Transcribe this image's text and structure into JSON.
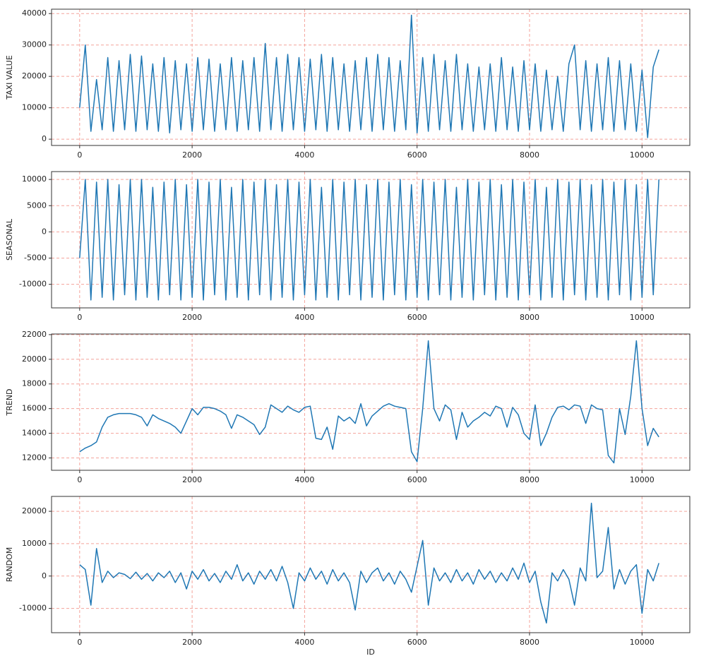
{
  "chart_data": [
    {
      "type": "line",
      "ylabel": "TAXI VALUE",
      "color": "#1f77b4",
      "grid": true,
      "xlim": [
        -500,
        10850
      ],
      "ylim": [
        -2000,
        41400
      ],
      "xticks": [
        0,
        2000,
        4000,
        6000,
        8000,
        10000
      ],
      "yticks": [
        0,
        10000,
        20000,
        30000,
        40000
      ],
      "x": [
        0,
        100,
        200,
        300,
        400,
        500,
        600,
        700,
        800,
        900,
        1000,
        1100,
        1200,
        1300,
        1400,
        1500,
        1600,
        1700,
        1800,
        1900,
        2000,
        2100,
        2200,
        2300,
        2400,
        2500,
        2600,
        2700,
        2800,
        2900,
        3000,
        3100,
        3200,
        3300,
        3400,
        3500,
        3600,
        3700,
        3800,
        3900,
        4000,
        4100,
        4200,
        4300,
        4400,
        4500,
        4600,
        4700,
        4800,
        4900,
        5000,
        5100,
        5200,
        5300,
        5400,
        5500,
        5600,
        5700,
        5800,
        5900,
        6000,
        6100,
        6200,
        6300,
        6400,
        6500,
        6600,
        6700,
        6800,
        6900,
        7000,
        7100,
        7200,
        7300,
        7400,
        7500,
        7600,
        7700,
        7800,
        7900,
        8000,
        8100,
        8200,
        8300,
        8400,
        8500,
        8600,
        8700,
        8800,
        8900,
        9000,
        9100,
        9200,
        9300,
        9400,
        9500,
        9600,
        9700,
        9800,
        9900,
        10000,
        10100,
        10200,
        10300
      ],
      "values": [
        10000,
        30000,
        2500,
        19000,
        3000,
        26000,
        2500,
        25000,
        3000,
        27000,
        2500,
        26500,
        3000,
        24000,
        2500,
        26000,
        2000,
        25000,
        3000,
        24000,
        2500,
        26000,
        3000,
        25500,
        2500,
        24000,
        3000,
        26000,
        2500,
        25000,
        3000,
        26000,
        2500,
        30500,
        3000,
        26000,
        2500,
        27000,
        3000,
        26000,
        2500,
        25500,
        3000,
        27000,
        2500,
        26000,
        3000,
        24000,
        2500,
        25000,
        3000,
        26000,
        2500,
        27000,
        3000,
        26000,
        2500,
        25000,
        3000,
        39500,
        2000,
        26000,
        2500,
        27000,
        3000,
        25000,
        2500,
        27000,
        3000,
        24000,
        2500,
        23000,
        3000,
        24000,
        2500,
        26000,
        3000,
        23000,
        2500,
        25000,
        3000,
        24000,
        2500,
        22000,
        3000,
        20000,
        2500,
        24000,
        30000,
        3000,
        25000,
        2500,
        24000,
        3000,
        26000,
        2500,
        25000,
        3000,
        24000,
        2500,
        22000,
        500,
        23000,
        28500
      ]
    },
    {
      "type": "line",
      "ylabel": "SEASONAL",
      "color": "#1f77b4",
      "grid": true,
      "xlim": [
        -500,
        10850
      ],
      "ylim": [
        -14500,
        11500
      ],
      "xticks": [
        0,
        2000,
        4000,
        6000,
        8000,
        10000
      ],
      "yticks": [
        -10000,
        -5000,
        0,
        5000,
        10000
      ],
      "x": [
        0,
        100,
        200,
        300,
        400,
        500,
        600,
        700,
        800,
        900,
        1000,
        1100,
        1200,
        1300,
        1400,
        1500,
        1600,
        1700,
        1800,
        1900,
        2000,
        2100,
        2200,
        2300,
        2400,
        2500,
        2600,
        2700,
        2800,
        2900,
        3000,
        3100,
        3200,
        3300,
        3400,
        3500,
        3600,
        3700,
        3800,
        3900,
        4000,
        4100,
        4200,
        4300,
        4400,
        4500,
        4600,
        4700,
        4800,
        4900,
        5000,
        5100,
        5200,
        5300,
        5400,
        5500,
        5600,
        5700,
        5800,
        5900,
        6000,
        6100,
        6200,
        6300,
        6400,
        6500,
        6600,
        6700,
        6800,
        6900,
        7000,
        7100,
        7200,
        7300,
        7400,
        7500,
        7600,
        7700,
        7800,
        7900,
        8000,
        8100,
        8200,
        8300,
        8400,
        8500,
        8600,
        8700,
        8800,
        8900,
        9000,
        9100,
        9200,
        9300,
        9400,
        9500,
        9600,
        9700,
        9800,
        9900,
        10000,
        10100,
        10200,
        10300
      ],
      "values": [
        -5000,
        10000,
        -13000,
        9500,
        -12500,
        10000,
        -13000,
        9000,
        -12000,
        10000,
        -13000,
        10000,
        -12500,
        8500,
        -13000,
        9500,
        -12000,
        10000,
        -13000,
        9000,
        -12500,
        10000,
        -13000,
        9500,
        -12000,
        10000,
        -13000,
        8500,
        -12500,
        10000,
        -13000,
        9500,
        -12000,
        10000,
        -13000,
        9000,
        -12500,
        10000,
        -13000,
        9500,
        -12000,
        10000,
        -13000,
        8500,
        -12500,
        10000,
        -13000,
        9500,
        -12000,
        10000,
        -13000,
        9000,
        -12500,
        10000,
        -13000,
        9500,
        -12000,
        10000,
        -13000,
        9000,
        -12500,
        10000,
        -13000,
        9500,
        -12000,
        10000,
        -13000,
        8500,
        -12500,
        10000,
        -13000,
        9500,
        -12000,
        10000,
        -13000,
        9000,
        -12500,
        10000,
        -13000,
        9500,
        -12000,
        10000,
        -13000,
        8500,
        -12500,
        10000,
        -13000,
        9500,
        -12000,
        10000,
        -13000,
        9000,
        -12500,
        10000,
        -13000,
        9500,
        -12000,
        10000,
        -13000,
        9000,
        -12500,
        10000,
        -12000,
        10000
      ]
    },
    {
      "type": "line",
      "ylabel": "TREND",
      "color": "#1f77b4",
      "grid": true,
      "xlim": [
        -500,
        10850
      ],
      "ylim": [
        11000,
        22050
      ],
      "xticks": [
        0,
        2000,
        4000,
        6000,
        8000,
        10000
      ],
      "yticks": [
        12000,
        14000,
        16000,
        18000,
        20000,
        22000
      ],
      "x": [
        0,
        100,
        200,
        300,
        400,
        500,
        600,
        700,
        800,
        900,
        1000,
        1100,
        1200,
        1300,
        1400,
        1500,
        1600,
        1700,
        1800,
        1900,
        2000,
        2100,
        2200,
        2300,
        2400,
        2500,
        2600,
        2700,
        2800,
        2900,
        3000,
        3100,
        3200,
        3300,
        3400,
        3500,
        3600,
        3700,
        3800,
        3900,
        4000,
        4100,
        4200,
        4300,
        4400,
        4500,
        4600,
        4700,
        4800,
        4900,
        5000,
        5100,
        5200,
        5300,
        5400,
        5500,
        5600,
        5700,
        5800,
        5900,
        6000,
        6100,
        6200,
        6300,
        6400,
        6500,
        6600,
        6700,
        6800,
        6900,
        7000,
        7100,
        7200,
        7300,
        7400,
        7500,
        7600,
        7700,
        7800,
        7900,
        8000,
        8100,
        8200,
        8300,
        8400,
        8500,
        8600,
        8700,
        8800,
        8900,
        9000,
        9100,
        9200,
        9300,
        9400,
        9500,
        9600,
        9700,
        9800,
        9900,
        10000,
        10100,
        10200,
        10300
      ],
      "values": [
        12500,
        12800,
        13000,
        13300,
        14500,
        15300,
        15500,
        15600,
        15600,
        15600,
        15500,
        15300,
        14600,
        15500,
        15200,
        15000,
        14800,
        14500,
        14000,
        15000,
        16000,
        15500,
        16100,
        16100,
        16000,
        15800,
        15500,
        14400,
        15500,
        15300,
        15000,
        14700,
        13900,
        14500,
        16300,
        16000,
        15700,
        16200,
        15900,
        15700,
        16100,
        16200,
        13600,
        13500,
        14500,
        12700,
        15400,
        15000,
        15300,
        14800,
        16400,
        14600,
        15400,
        15800,
        16200,
        16400,
        16200,
        16100,
        16000,
        12500,
        11700,
        16000,
        21500,
        16000,
        15000,
        16300,
        15900,
        13500,
        15700,
        14500,
        15000,
        15300,
        15700,
        15400,
        16200,
        16000,
        14500,
        16100,
        15500,
        14000,
        13500,
        16300,
        13000,
        14000,
        15300,
        16100,
        16200,
        15900,
        16300,
        16200,
        14800,
        16300,
        16000,
        15900,
        12200,
        11600,
        16000,
        13900,
        17000,
        21500,
        16000,
        13000,
        14400,
        13700
      ]
    },
    {
      "type": "line",
      "ylabel": "RANDOM",
      "xlabel": "ID",
      "color": "#1f77b4",
      "grid": true,
      "xlim": [
        -500,
        10850
      ],
      "ylim": [
        -17500,
        24600
      ],
      "xticks": [
        0,
        2000,
        4000,
        6000,
        8000,
        10000
      ],
      "yticks": [
        -10000,
        0,
        10000,
        20000
      ],
      "x": [
        0,
        100,
        200,
        300,
        400,
        500,
        600,
        700,
        800,
        900,
        1000,
        1100,
        1200,
        1300,
        1400,
        1500,
        1600,
        1700,
        1800,
        1900,
        2000,
        2100,
        2200,
        2300,
        2400,
        2500,
        2600,
        2700,
        2800,
        2900,
        3000,
        3100,
        3200,
        3300,
        3400,
        3500,
        3600,
        3700,
        3800,
        3900,
        4000,
        4100,
        4200,
        4300,
        4400,
        4500,
        4600,
        4700,
        4800,
        4900,
        5000,
        5100,
        5200,
        5300,
        5400,
        5500,
        5600,
        5700,
        5800,
        5900,
        6000,
        6100,
        6200,
        6300,
        6400,
        6500,
        6600,
        6700,
        6800,
        6900,
        7000,
        7100,
        7200,
        7300,
        7400,
        7500,
        7600,
        7700,
        7800,
        7900,
        8000,
        8100,
        8200,
        8300,
        8400,
        8500,
        8600,
        8700,
        8800,
        8900,
        9000,
        9100,
        9200,
        9300,
        9400,
        9500,
        9600,
        9700,
        9800,
        9900,
        10000,
        10100,
        10200,
        10300
      ],
      "values": [
        3500,
        2000,
        -9000,
        8500,
        -2000,
        1500,
        -500,
        1000,
        500,
        -800,
        1200,
        -1000,
        800,
        -1500,
        1000,
        -500,
        1500,
        -2000,
        1000,
        -4000,
        1500,
        -1000,
        2000,
        -1500,
        800,
        -2000,
        1500,
        -1000,
        3500,
        -1500,
        1000,
        -2500,
        1500,
        -1000,
        2000,
        -1500,
        3000,
        -2000,
        -10000,
        1000,
        -1500,
        2500,
        -1000,
        1500,
        -2500,
        2000,
        -1500,
        1000,
        -2000,
        -10500,
        1500,
        -2000,
        1000,
        2500,
        -1500,
        1000,
        -2500,
        1500,
        -1000,
        -5000,
        3000,
        11000,
        -9000,
        2500,
        -1500,
        1000,
        -2000,
        2000,
        -1500,
        1000,
        -2500,
        2000,
        -1000,
        1500,
        -2000,
        1000,
        -1500,
        2500,
        -1000,
        4000,
        -2000,
        1500,
        -8000,
        -14500,
        1000,
        -1500,
        2000,
        -1000,
        -9000,
        2500,
        -1500,
        22500,
        -500,
        1500,
        15000,
        -4000,
        2000,
        -2500,
        1500,
        3500,
        -11500,
        2000,
        -1500,
        4000
      ]
    }
  ]
}
